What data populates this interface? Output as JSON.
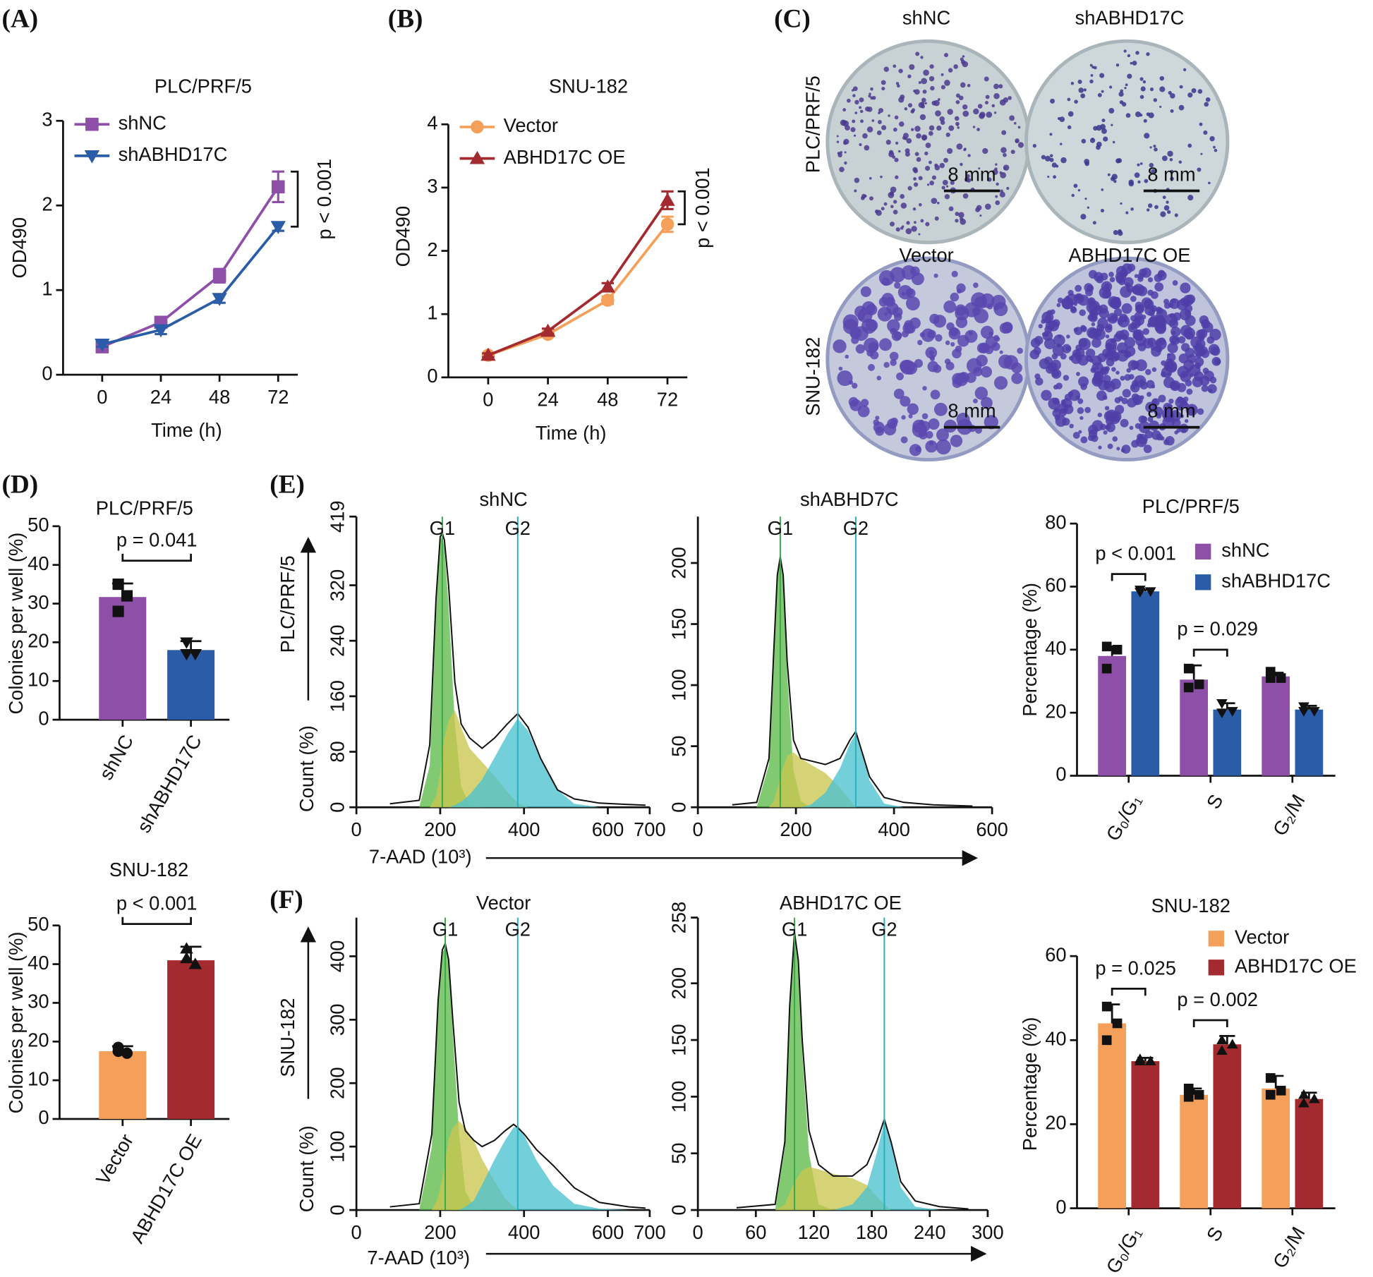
{
  "panel_labels": [
    "(A)",
    "(B)",
    "(C)",
    "(D)",
    "(E)",
    "(F)"
  ],
  "panel_c": {
    "columns_top": [
      "shNC",
      "shABHD17C"
    ],
    "columns_bottom": [
      "Vector",
      "ABHD17C OE"
    ],
    "rows": [
      "PLC/PRF/5",
      "SNU-182"
    ],
    "scale_bars": [
      "8 mm",
      "8 mm",
      "8 mm",
      "8 mm"
    ]
  },
  "chart_data": [
    {
      "type": "line",
      "title": "PLC/PRF/5",
      "xlabel": "Time (h)",
      "ylabel": "OD490",
      "x": [
        0,
        24,
        48,
        72
      ],
      "xlim": [
        -16,
        80
      ],
      "xticks": [
        0,
        24,
        48,
        72
      ],
      "ylim": [
        0,
        3
      ],
      "yticks": [
        0,
        1,
        2,
        3
      ],
      "series": [
        {
          "name": "shNC",
          "color": "#8e4fa8",
          "marker": "square",
          "values": [
            0.33,
            0.62,
            1.17,
            2.22
          ],
          "errors": [
            0.03,
            0.04,
            0.08,
            0.18
          ]
        },
        {
          "name": "shABHD17C",
          "color": "#2a5ca8",
          "marker": "triangle-down",
          "values": [
            0.36,
            0.53,
            0.9,
            1.75
          ],
          "errors": [
            0.03,
            0.05,
            0.05,
            0.05
          ]
        }
      ],
      "annotation": "p < 0.001"
    },
    {
      "type": "line",
      "title": "SNU-182",
      "xlabel": "Time (h)",
      "ylabel": "OD490",
      "x": [
        0,
        24,
        48,
        72
      ],
      "xlim": [
        -16,
        80
      ],
      "xticks": [
        0,
        24,
        48,
        72
      ],
      "ylim": [
        0,
        4
      ],
      "yticks": [
        0,
        1,
        2,
        3,
        4
      ],
      "series": [
        {
          "name": "Vector",
          "color": "#f5a05a",
          "marker": "circle",
          "values": [
            0.35,
            0.68,
            1.22,
            2.42
          ],
          "errors": [
            0.03,
            0.04,
            0.06,
            0.12
          ]
        },
        {
          "name": "ABHD17C OE",
          "color": "#a32a2e",
          "marker": "triangle",
          "values": [
            0.35,
            0.73,
            1.43,
            2.8
          ],
          "errors": [
            0.03,
            0.04,
            0.06,
            0.14
          ]
        }
      ],
      "annotation": "p < 0.001"
    },
    {
      "type": "bar",
      "title": "PLC/PRF/5",
      "ylabel": "Colonies per well (%)",
      "categories": [
        "shNC",
        "shABHD17C"
      ],
      "values": [
        31.7,
        18
      ],
      "errors": [
        3.5,
        2.3
      ],
      "colors": [
        "#8e4fa8",
        "#2a5ca8"
      ],
      "point_markers": [
        "square",
        "triangle-down"
      ],
      "points": [
        [
          35,
          32,
          28
        ],
        [
          20,
          17,
          17
        ]
      ],
      "ylim": [
        0,
        50
      ],
      "yticks": [
        0,
        10,
        20,
        30,
        40,
        50
      ],
      "annotation": "p = 0.041"
    },
    {
      "type": "bar",
      "title": "SNU-182",
      "ylabel": "Colonies per well (%)",
      "categories": [
        "Vector",
        "ABHD17C OE"
      ],
      "values": [
        17.5,
        41
      ],
      "errors": [
        1.3,
        3.5
      ],
      "colors": [
        "#f5a05a",
        "#a32a2e"
      ],
      "point_markers": [
        "circle",
        "triangle"
      ],
      "points": [
        [
          18.5,
          17,
          17.5
        ],
        [
          44,
          40,
          41.5
        ]
      ],
      "ylim": [
        0,
        50
      ],
      "yticks": [
        0,
        10,
        20,
        30,
        40,
        50
      ],
      "annotation": "p < 0.001"
    },
    {
      "type": "area",
      "title": "shNC",
      "ylabel": "Count (%)",
      "side_label": "PLC/PRF/5",
      "xlabel": "7-AAD (10³)",
      "xlim": [
        0,
        700
      ],
      "xticks": [
        0,
        200,
        400,
        600,
        700
      ],
      "ylim": [
        0,
        419
      ],
      "yticks": [
        0,
        80,
        160,
        240,
        320,
        419
      ],
      "x": [
        80,
        150,
        175,
        190,
        200,
        205,
        210,
        220,
        235,
        250,
        270,
        300,
        330,
        360,
        385,
        410,
        440,
        480,
        520,
        580,
        650,
        690
      ],
      "series": [
        {
          "color": "#5dbb4a",
          "fill": true,
          "values": [
            0,
            0,
            60,
            280,
            385,
            390,
            375,
            290,
            120,
            30,
            3,
            0,
            0,
            0,
            0,
            0,
            0,
            0,
            0,
            0,
            0,
            0
          ]
        },
        {
          "color": "#c9c64e",
          "fill": true,
          "values": [
            0,
            0,
            0,
            15,
            50,
            80,
            100,
            125,
            140,
            115,
            85,
            65,
            45,
            22,
            6,
            0,
            0,
            0,
            0,
            0,
            0,
            0
          ]
        },
        {
          "color": "#4cc3d1",
          "fill": true,
          "values": [
            0,
            0,
            0,
            0,
            0,
            0,
            0,
            0,
            3,
            8,
            18,
            40,
            72,
            105,
            128,
            110,
            68,
            25,
            5,
            0,
            0,
            0
          ]
        },
        {
          "color": "#111111",
          "fill": false,
          "values": [
            5,
            10,
            90,
            300,
            390,
            395,
            385,
            320,
            180,
            120,
            100,
            85,
            100,
            120,
            135,
            115,
            70,
            25,
            12,
            6,
            4,
            3
          ]
        }
      ],
      "markers": [
        {
          "label": "G1",
          "x": 205,
          "color": "#3aa84a"
        },
        {
          "label": "G2",
          "x": 385,
          "color": "#2ab0bd"
        }
      ]
    },
    {
      "type": "area",
      "title": "shABHD7C",
      "xlim": [
        0,
        600
      ],
      "xticks": [
        0,
        200,
        400,
        600
      ],
      "ylim": [
        0,
        238
      ],
      "yticks": [
        0,
        50,
        100,
        150,
        200
      ],
      "x": [
        70,
        120,
        145,
        155,
        162,
        168,
        174,
        182,
        195,
        210,
        230,
        260,
        290,
        310,
        322,
        335,
        350,
        380,
        420,
        480,
        560
      ],
      "series": [
        {
          "color": "#5dbb4a",
          "fill": true,
          "values": [
            0,
            0,
            35,
            125,
            188,
            205,
            185,
            110,
            30,
            5,
            0,
            0,
            0,
            0,
            0,
            0,
            0,
            0,
            0,
            0,
            0
          ]
        },
        {
          "color": "#c9c64e",
          "fill": true,
          "values": [
            0,
            0,
            0,
            5,
            15,
            25,
            33,
            42,
            45,
            40,
            35,
            28,
            16,
            6,
            0,
            0,
            0,
            0,
            0,
            0,
            0
          ]
        },
        {
          "color": "#4cc3d1",
          "fill": true,
          "values": [
            0,
            0,
            0,
            0,
            0,
            0,
            0,
            0,
            0,
            0,
            2,
            12,
            32,
            52,
            60,
            45,
            22,
            3,
            0,
            0,
            0
          ]
        },
        {
          "color": "#111111",
          "fill": false,
          "values": [
            2,
            4,
            40,
            130,
            190,
            205,
            190,
            120,
            55,
            40,
            38,
            35,
            40,
            55,
            62,
            45,
            25,
            8,
            4,
            2,
            1
          ]
        }
      ],
      "markers": [
        {
          "label": "G1",
          "x": 168,
          "color": "#3aa84a"
        },
        {
          "label": "G2",
          "x": 322,
          "color": "#2ab0bd"
        }
      ]
    },
    {
      "type": "grouped_bar",
      "title": "PLC/PRF/5",
      "ylabel": "Percentage (%)",
      "categories": [
        "G₀/G₁",
        "S",
        "G₂/M"
      ],
      "ylim": [
        0,
        80
      ],
      "yticks": [
        0,
        20,
        40,
        60,
        80
      ],
      "series": [
        {
          "name": "shNC",
          "color": "#8e4fa8",
          "marker": "square",
          "values": [
            38,
            30.5,
            31.5
          ],
          "errors": [
            3,
            4.5,
            1.2
          ],
          "points": [
            [
              41,
              40,
              34
            ],
            [
              34,
              29,
              28
            ],
            [
              33,
              31,
              31
            ]
          ]
        },
        {
          "name": "shABHD17C",
          "color": "#2a5ca8",
          "marker": "triangle-down",
          "values": [
            58.5,
            21,
            21
          ],
          "errors": [
            0.5,
            2,
            1.2
          ],
          "points": [
            [
              59,
              58.5,
              58.3
            ],
            [
              23,
              20.5,
              20
            ],
            [
              22,
              20.5,
              20.5
            ]
          ]
        }
      ],
      "annotations": [
        "p < 0.001",
        "p = 0.029"
      ]
    },
    {
      "type": "area",
      "title": "Vector",
      "ylabel": "Count (%)",
      "side_label": "SNU-182",
      "xlabel": "7-AAD (10³)",
      "xlim": [
        0,
        700
      ],
      "xticks": [
        0,
        200,
        400,
        600,
        700
      ],
      "ylim": [
        0,
        461
      ],
      "yticks": [
        0,
        100,
        200,
        300,
        400
      ],
      "x": [
        80,
        150,
        180,
        195,
        205,
        212,
        220,
        230,
        245,
        260,
        280,
        300,
        330,
        355,
        375,
        385,
        400,
        430,
        470,
        520,
        580,
        650,
        690
      ],
      "series": [
        {
          "color": "#5dbb4a",
          "fill": true,
          "values": [
            0,
            0,
            100,
            320,
            405,
            415,
            390,
            280,
            120,
            30,
            5,
            0,
            0,
            0,
            0,
            0,
            0,
            0,
            0,
            0,
            0,
            0,
            0
          ]
        },
        {
          "color": "#c9c64e",
          "fill": true,
          "values": [
            0,
            0,
            0,
            20,
            50,
            80,
            110,
            130,
            140,
            130,
            110,
            80,
            45,
            18,
            6,
            0,
            0,
            0,
            0,
            0,
            0,
            0,
            0
          ]
        },
        {
          "color": "#4cc3d1",
          "fill": true,
          "values": [
            0,
            0,
            0,
            0,
            0,
            0,
            0,
            0,
            0,
            5,
            15,
            40,
            80,
            110,
            130,
            132,
            118,
            78,
            38,
            10,
            2,
            0,
            0
          ]
        },
        {
          "color": "#111111",
          "fill": false,
          "values": [
            5,
            10,
            120,
            330,
            410,
            420,
            395,
            300,
            170,
            125,
            110,
            100,
            110,
            125,
            135,
            130,
            120,
            95,
            70,
            35,
            12,
            5,
            3
          ]
        }
      ],
      "markers": [
        {
          "label": "G1",
          "x": 212,
          "color": "#3aa84a"
        },
        {
          "label": "G2",
          "x": 385,
          "color": "#2ab0bd"
        }
      ]
    },
    {
      "type": "area",
      "title": "ABHD17C OE",
      "xlim": [
        0,
        300
      ],
      "xticks": [
        0,
        60,
        120,
        180,
        240,
        300
      ],
      "ylim": [
        0,
        258
      ],
      "yticks": [
        0,
        50,
        100,
        150,
        200,
        258
      ],
      "x": [
        40,
        80,
        90,
        95,
        100,
        104,
        108,
        115,
        125,
        140,
        160,
        175,
        185,
        193,
        200,
        210,
        225,
        250,
        280
      ],
      "series": [
        {
          "color": "#5dbb4a",
          "fill": true,
          "values": [
            0,
            0,
            55,
            175,
            245,
            215,
            140,
            50,
            5,
            0,
            0,
            0,
            0,
            0,
            0,
            0,
            0,
            0,
            0
          ]
        },
        {
          "color": "#c9c64e",
          "fill": true,
          "values": [
            0,
            0,
            5,
            15,
            25,
            30,
            35,
            38,
            36,
            32,
            28,
            22,
            12,
            5,
            0,
            0,
            0,
            0,
            0
          ]
        },
        {
          "color": "#4cc3d1",
          "fill": true,
          "values": [
            0,
            0,
            0,
            0,
            0,
            0,
            0,
            0,
            0,
            0,
            5,
            20,
            50,
            78,
            58,
            20,
            3,
            0,
            0
          ]
        },
        {
          "color": "#111111",
          "fill": false,
          "values": [
            2,
            5,
            60,
            180,
            245,
            220,
            150,
            70,
            40,
            30,
            30,
            40,
            60,
            80,
            60,
            25,
            8,
            3,
            1
          ]
        }
      ],
      "markers": [
        {
          "label": "G1",
          "x": 100,
          "color": "#3aa84a"
        },
        {
          "label": "G2",
          "x": 193,
          "color": "#2ab0bd"
        }
      ]
    },
    {
      "type": "grouped_bar",
      "title": "SNU-182",
      "ylabel": "Percentage (%)",
      "categories": [
        "G₀/G₁",
        "S",
        "G₂/M"
      ],
      "ylim": [
        0,
        60
      ],
      "yticks": [
        0,
        20,
        40,
        60
      ],
      "series": [
        {
          "name": "Vector",
          "color": "#f5a05a",
          "marker": "square",
          "values": [
            44,
            27,
            28.5
          ],
          "errors": [
            4.5,
            1.5,
            3
          ],
          "points": [
            [
              48,
              44,
              40
            ],
            [
              28.5,
              27,
              26.5
            ],
            [
              31,
              28,
              27
            ]
          ]
        },
        {
          "name": "ABHD17C OE",
          "color": "#a32a2e",
          "marker": "triangle",
          "values": [
            35,
            39,
            26
          ],
          "errors": [
            0.8,
            2,
            1.5
          ],
          "points": [
            [
              35.5,
              35,
              35
            ],
            [
              40,
              39,
              37.5
            ],
            [
              27,
              26,
              25
            ]
          ]
        }
      ],
      "annotations": [
        "p = 0.025",
        "p = 0.002"
      ]
    }
  ]
}
